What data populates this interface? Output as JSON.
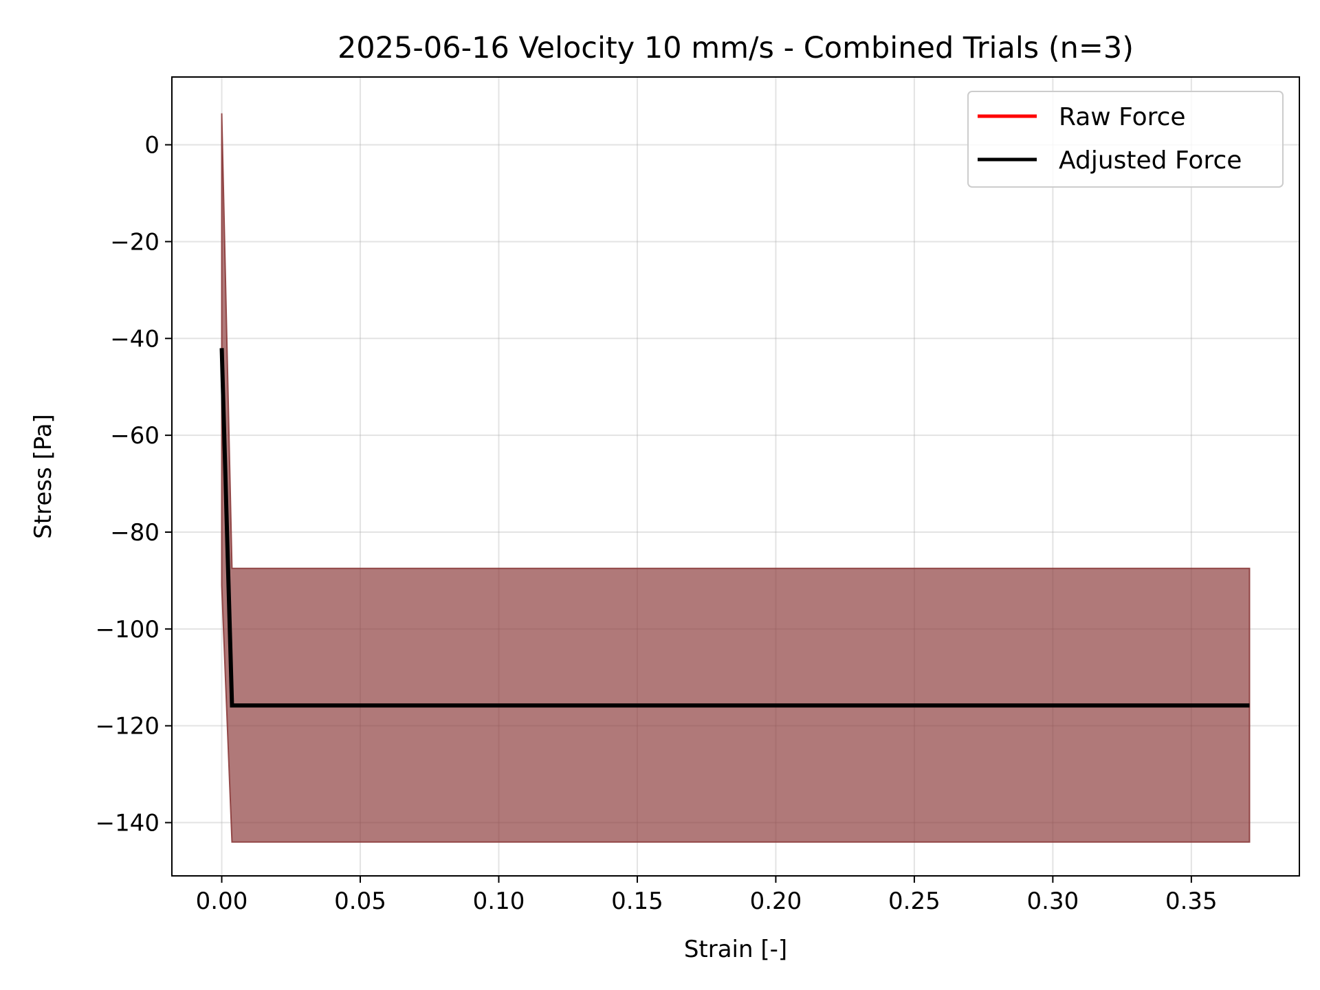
{
  "chart_data": {
    "type": "line",
    "title": "2025-06-16 Velocity 10 mm/s - Combined Trials (n=3)",
    "xlabel": "Strain [-]",
    "ylabel": "Stress [Pa]",
    "xlim": [
      -0.018,
      0.389
    ],
    "ylim": [
      -151,
      14
    ],
    "xticks": [
      0.0,
      0.05,
      0.1,
      0.15,
      0.2,
      0.25,
      0.3,
      0.35
    ],
    "xtick_labels": [
      "0.00",
      "0.05",
      "0.10",
      "0.15",
      "0.20",
      "0.25",
      "0.30",
      "0.35"
    ],
    "yticks": [
      0,
      -20,
      -40,
      -60,
      -80,
      -100,
      -120,
      -140
    ],
    "ytick_labels": [
      "0",
      "−20",
      "−40",
      "−60",
      "−80",
      "−100",
      "−120",
      "−140"
    ],
    "grid": true,
    "legend_position": "top-right",
    "band": {
      "color": "#8b3a3a",
      "opacity": 0.68,
      "x": [
        0.0,
        0.0037,
        0.371
      ],
      "upper": [
        6.5,
        -87.5,
        -87.5
      ],
      "lower": [
        -91.0,
        -144.0,
        -144.0
      ]
    },
    "series": [
      {
        "name": "Raw Force",
        "color": "#ff0000",
        "x": [],
        "y": []
      },
      {
        "name": "Adjusted Force",
        "color": "#000000",
        "x": [
          0.0,
          0.0037,
          0.371
        ],
        "y": [
          -42.0,
          -115.8,
          -115.8
        ]
      }
    ]
  }
}
